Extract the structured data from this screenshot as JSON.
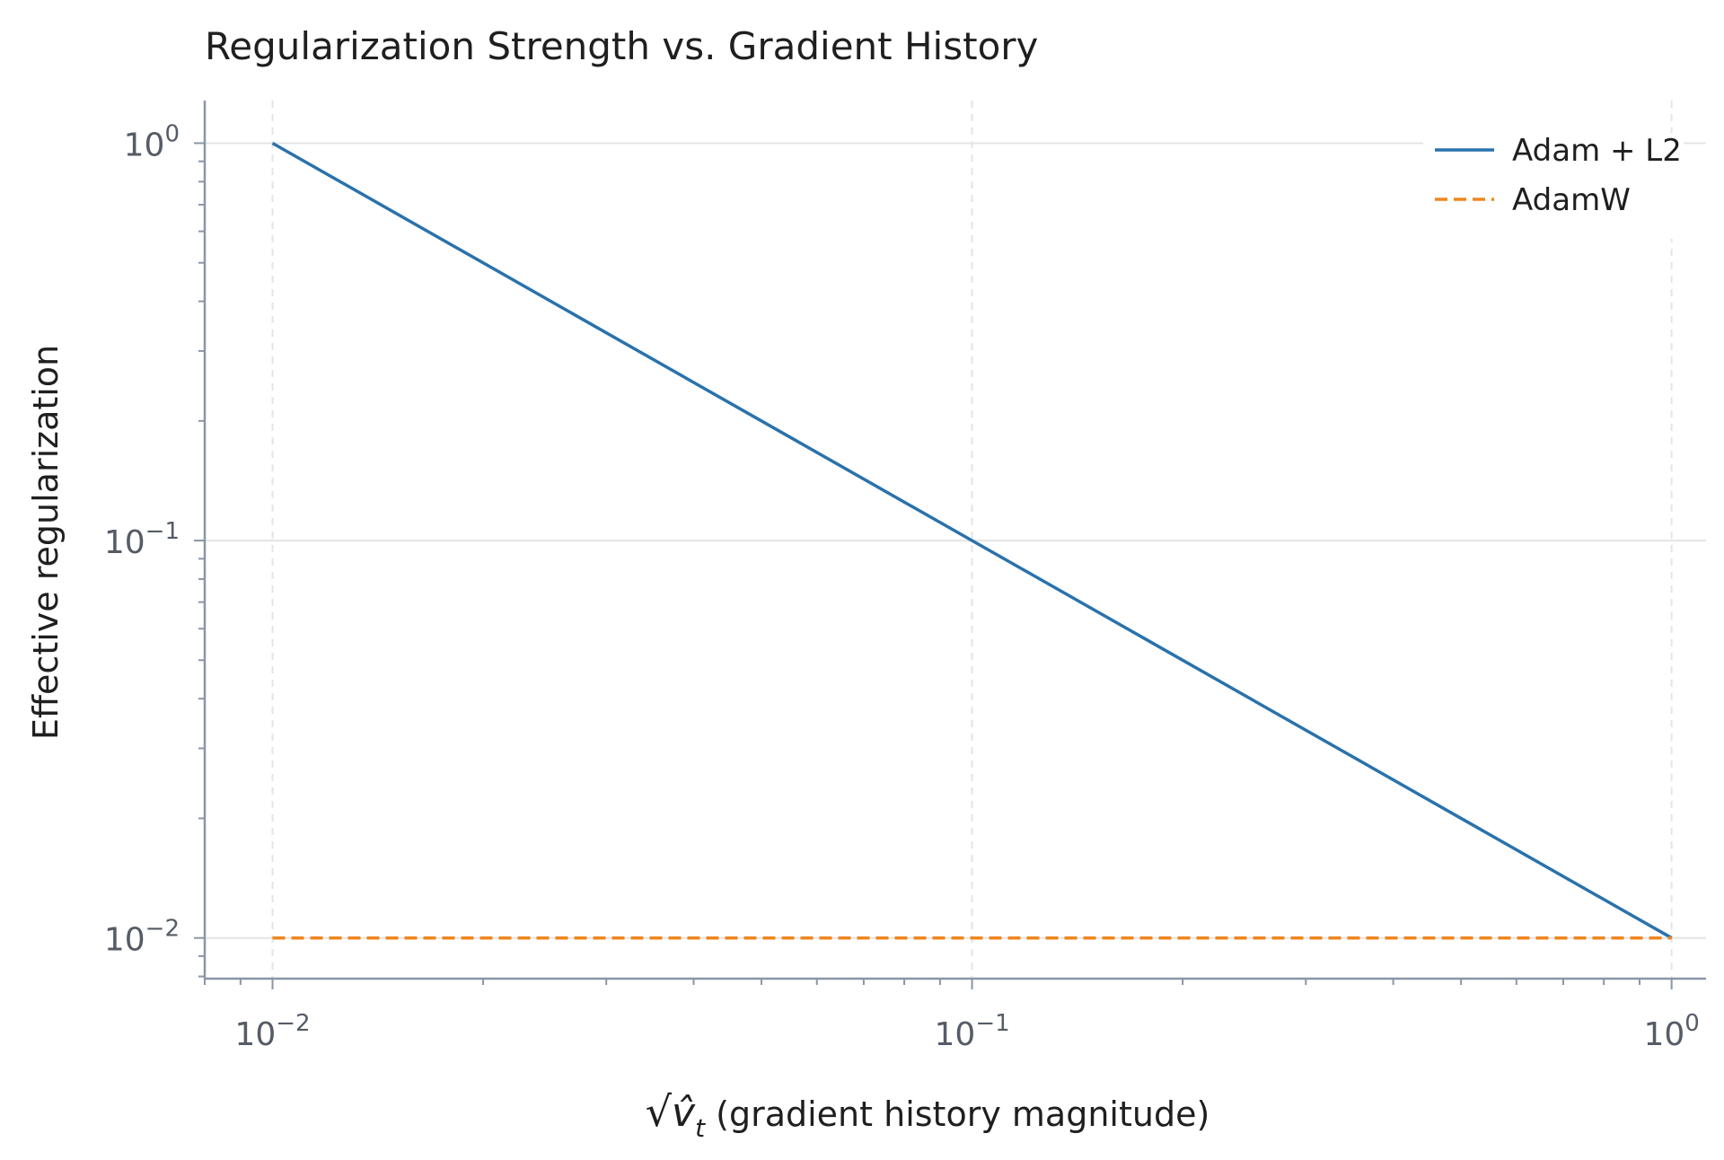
{
  "chart_data": {
    "type": "line",
    "title": "Regularization Strength vs. Gradient History",
    "xlabel_prefix": "√",
    "xlabel_symbol": "v̂",
    "xlabel_subscript": "t",
    "xlabel_text": " (gradient history magnitude)",
    "ylabel": "Effective regularization",
    "xscale": "log",
    "yscale": "log",
    "xlim": [
      0.008,
      1.12
    ],
    "ylim": [
      0.0079,
      1.28
    ],
    "grid": true,
    "legend_position": "top-right",
    "x_ticks": [
      {
        "value": 0.01,
        "base": "10",
        "exp": "−2"
      },
      {
        "value": 0.1,
        "base": "10",
        "exp": "−1"
      },
      {
        "value": 1,
        "base": "10",
        "exp": "0"
      }
    ],
    "y_ticks": [
      {
        "value": 0.01,
        "base": "10",
        "exp": "−2"
      },
      {
        "value": 0.1,
        "base": "10",
        "exp": "−1"
      },
      {
        "value": 1,
        "base": "10",
        "exp": "0"
      }
    ],
    "series": [
      {
        "name": "Adam + L2",
        "color": "#2a72ab",
        "style": "solid",
        "x": [
          0.01,
          0.1,
          1
        ],
        "y": [
          1,
          0.1,
          0.01
        ]
      },
      {
        "name": "AdamW",
        "color": "#f0861e",
        "style": "dashed",
        "x": [
          0.01,
          0.1,
          1
        ],
        "y": [
          0.01,
          0.01,
          0.01
        ]
      }
    ]
  }
}
